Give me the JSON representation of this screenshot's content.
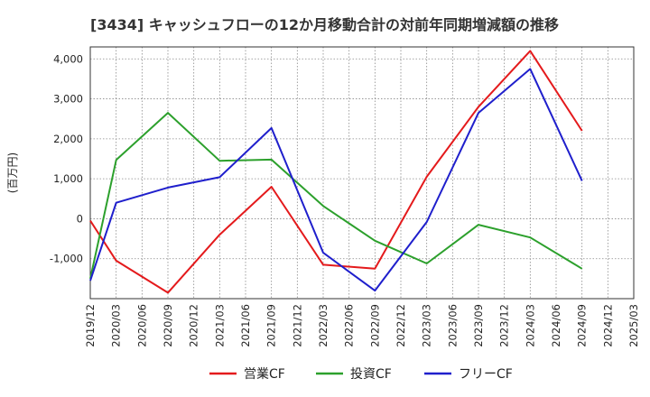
{
  "chart_data": {
    "type": "line",
    "title": "[3434]  キャッシュフローの12か月移動合計の対前年同期増減額の推移",
    "ylabel": "(百万円)",
    "xlabel": "",
    "x": [
      "2019/12",
      "2020/03",
      "2020/06",
      "2020/09",
      "2020/12",
      "2021/03",
      "2021/06",
      "2021/09",
      "2021/12",
      "2022/03",
      "2022/06",
      "2022/09",
      "2022/12",
      "2023/03",
      "2023/06",
      "2023/09",
      "2023/12",
      "2024/03",
      "2024/06",
      "2024/09",
      "2024/12",
      "2025/03"
    ],
    "ylim": [
      -2000,
      4300
    ],
    "yticks": [
      -1000,
      0,
      1000,
      2000,
      3000,
      4000
    ],
    "ytick_labels": [
      "-1,000",
      "0",
      "1,000",
      "2,000",
      "3,000",
      "4,000"
    ],
    "grid": true,
    "legend_position": "bottom",
    "series": [
      {
        "name": "営業CF",
        "color": "#e41a1c",
        "values": [
          -50,
          -1050,
          null,
          -1850,
          null,
          -400,
          null,
          800,
          null,
          -1150,
          null,
          -1250,
          null,
          1050,
          null,
          2800,
          null,
          4200,
          null,
          2200,
          null,
          null
        ]
      },
      {
        "name": "投資CF",
        "color": "#2ca02c",
        "values": [
          -1500,
          1470,
          null,
          2650,
          null,
          1450,
          null,
          1480,
          null,
          320,
          null,
          -550,
          null,
          -1120,
          null,
          -150,
          null,
          -470,
          null,
          -1250,
          null,
          null
        ]
      },
      {
        "name": "フリーCF",
        "color": "#1f1fcc",
        "values": [
          -1550,
          400,
          null,
          780,
          null,
          1040,
          null,
          2270,
          null,
          -850,
          null,
          -1800,
          null,
          -80,
          null,
          2650,
          null,
          3750,
          null,
          950,
          null,
          null
        ]
      }
    ]
  }
}
